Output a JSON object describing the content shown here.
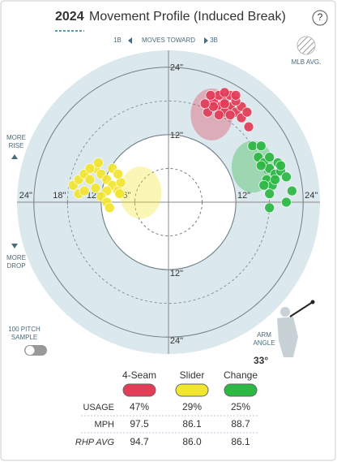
{
  "header": {
    "year": "2024",
    "title": "Movement Profile (Induced Break)",
    "help": "?"
  },
  "direction": {
    "left": "1B",
    "middle": "MOVES TOWARD",
    "right": "3B"
  },
  "mlb_avg_label": "MLB AVG.",
  "rise_label": "MORE\nRISE",
  "drop_label": "MORE\nDROP",
  "sample_label": "100 PITCH\nSAMPLE",
  "arm_angle": {
    "label": "ARM\nANGLE",
    "value": "33°"
  },
  "chart_data": {
    "type": "scatter",
    "xlim": [
      -27,
      27
    ],
    "ylim": [
      -27,
      27
    ],
    "xticks": [
      {
        "value": -24,
        "label": "24\""
      },
      {
        "value": -18,
        "label": "18\""
      },
      {
        "value": -12,
        "label": "12\""
      },
      {
        "value": -6,
        "label": "6\""
      },
      {
        "value": 12,
        "label": "12\""
      },
      {
        "value": 24,
        "label": "24\""
      }
    ],
    "yticks": [
      {
        "value": 24,
        "label": "24\""
      },
      {
        "value": 12,
        "label": "12\""
      },
      {
        "value": -12,
        "label": "12\""
      },
      {
        "value": -24,
        "label": "24\""
      }
    ],
    "series": [
      {
        "name": "4-Seam",
        "color": "#e23c57",
        "mlb_avg": [
          7.7,
          15.6
        ],
        "x": [
          9,
          10,
          11,
          8,
          12,
          7,
          9,
          10,
          11,
          13,
          8,
          12,
          10,
          9,
          11,
          6.5,
          13,
          14,
          10,
          12,
          14.3,
          7.5
        ],
        "values": [
          17,
          18,
          17,
          18,
          16,
          16,
          19,
          16,
          19,
          17,
          17,
          18,
          17.5,
          15.5,
          15.5,
          17.5,
          15,
          16,
          19.5,
          19,
          13.4,
          19
        ]
      },
      {
        "name": "Slider",
        "color": "#f2e52e",
        "mlb_avg": [
          -5,
          1.7
        ],
        "x": [
          -17,
          -16,
          -15,
          -14,
          -13,
          -12,
          -11,
          -10,
          -9,
          -8.5,
          -11,
          -12,
          -13,
          -14,
          -10,
          -9,
          -11,
          -16,
          -15,
          -10.5,
          -8.7,
          -12.5
        ],
        "values": [
          3,
          4,
          5,
          4,
          6,
          5,
          4,
          3,
          2,
          3.5,
          2,
          1,
          2.5,
          6,
          6,
          5,
          0,
          1.5,
          2,
          -1,
          1.5,
          7
        ]
      },
      {
        "name": "Change",
        "color": "#2bb843",
        "mlb_avg": [
          15,
          6.3
        ],
        "x": [
          15,
          16,
          17,
          18,
          19,
          17.5,
          18.5,
          20,
          16.5,
          18,
          19.5,
          17,
          18,
          21,
          18,
          21,
          22,
          16.5,
          19,
          20
        ],
        "values": [
          10,
          8,
          7,
          6,
          5,
          4,
          3,
          5.5,
          6.5,
          8,
          7,
          3,
          1.5,
          4.5,
          -1,
          0,
          2,
          10,
          4,
          6.5
        ]
      }
    ]
  },
  "pitch_table": {
    "rows": [
      {
        "label": "USAGE",
        "values": [
          "47%",
          "29%",
          "25%"
        ]
      },
      {
        "label": "MPH",
        "values": [
          "97.5",
          "86.1",
          "88.7"
        ]
      },
      {
        "label": "RHP AVG",
        "values": [
          "94.7",
          "86.0",
          "86.1"
        ]
      }
    ]
  }
}
